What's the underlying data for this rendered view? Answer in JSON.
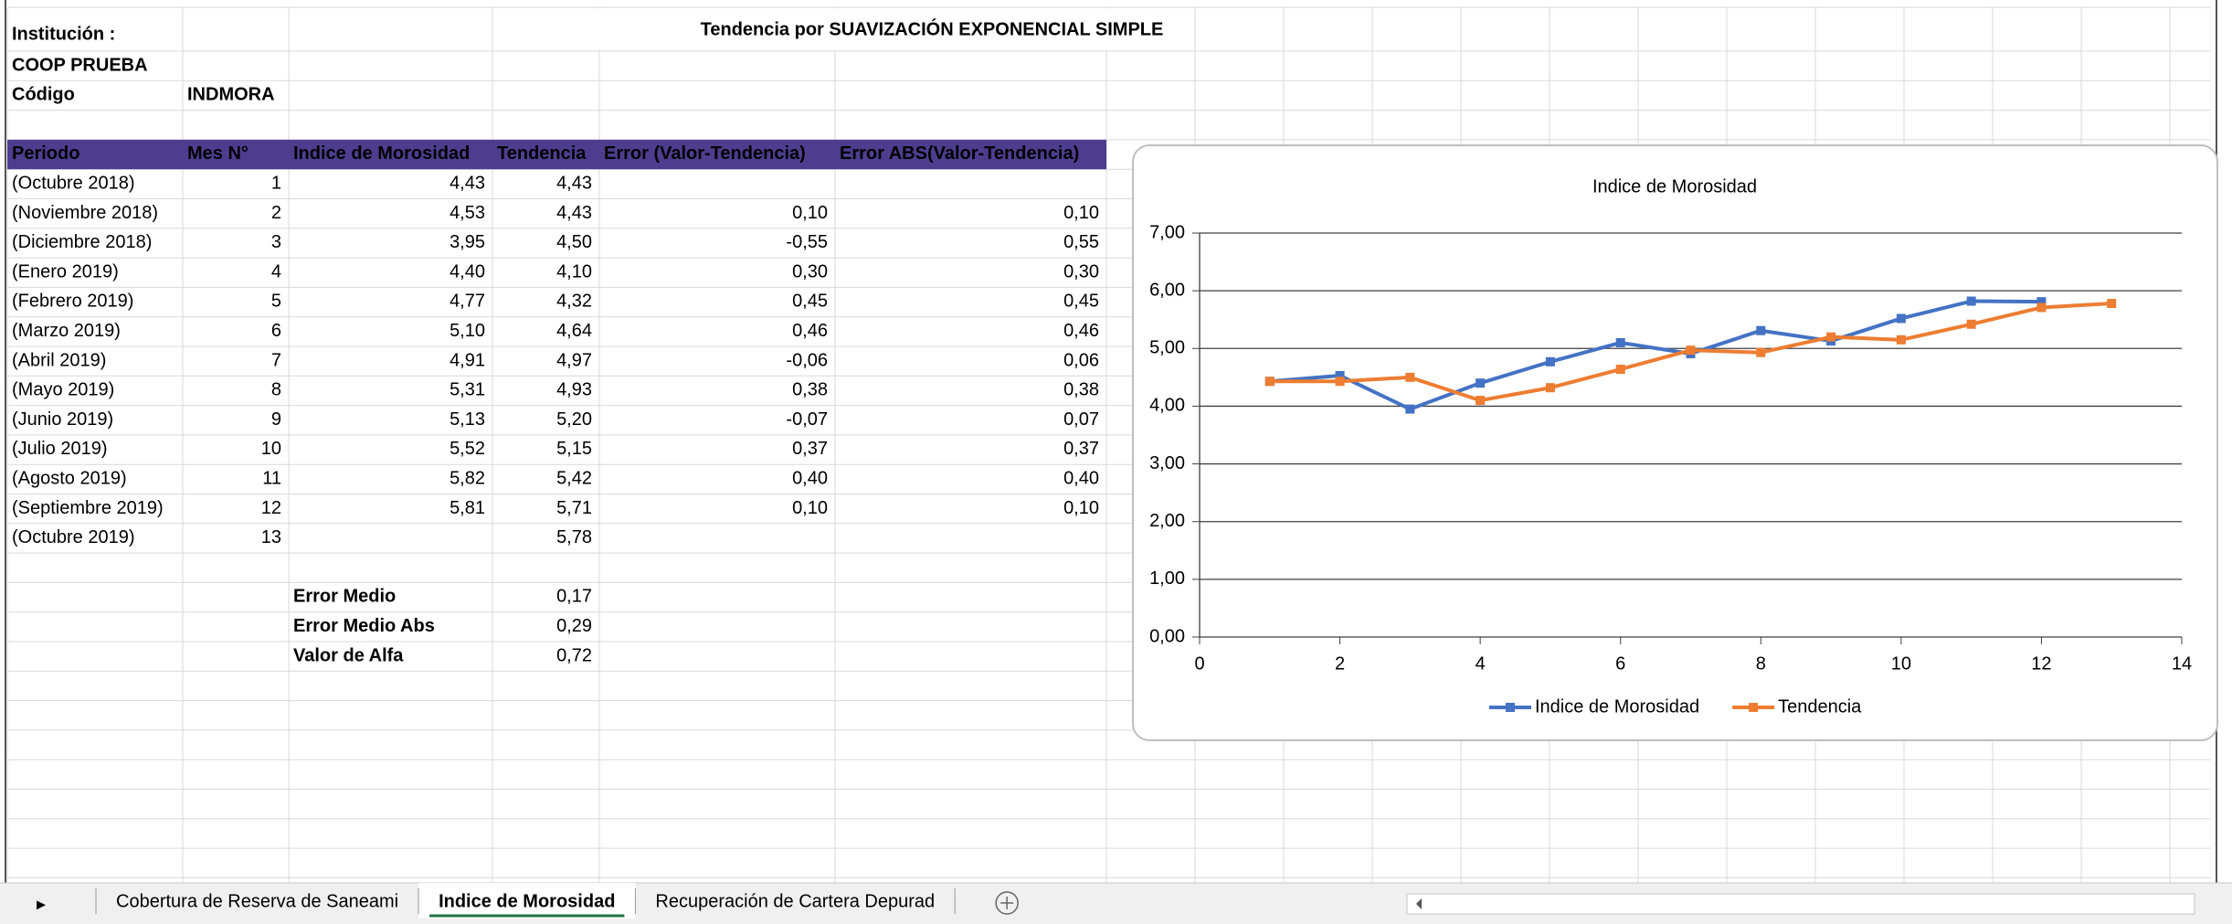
{
  "header": {
    "institution_label": "Institución :",
    "institution": "COOP PRUEBA",
    "code_label": "Código",
    "code": "INDMORA",
    "title": "Tendencia por SUAVIZACIÓN EXPONENCIAL SIMPLE"
  },
  "table": {
    "columns": [
      "Periodo",
      "Mes N°",
      "Indice de Morosidad",
      "Tendencia",
      "Error (Valor-Tendencia)",
      "Error ABS(Valor-Tendencia)"
    ],
    "rows": [
      [
        "(Octubre 2018)",
        "1",
        "4,43",
        "4,43",
        null,
        null
      ],
      [
        "(Noviembre 2018)",
        "2",
        "4,53",
        "4,43",
        "0,10",
        "0,10"
      ],
      [
        "(Diciembre 2018)",
        "3",
        "3,95",
        "4,50",
        "-0,55",
        "0,55"
      ],
      [
        "(Enero 2019)",
        "4",
        "4,40",
        "4,10",
        "0,30",
        "0,30"
      ],
      [
        "(Febrero 2019)",
        "5",
        "4,77",
        "4,32",
        "0,45",
        "0,45"
      ],
      [
        "(Marzo 2019)",
        "6",
        "5,10",
        "4,64",
        "0,46",
        "0,46"
      ],
      [
        "(Abril 2019)",
        "7",
        "4,91",
        "4,97",
        "-0,06",
        "0,06"
      ],
      [
        "(Mayo 2019)",
        "8",
        "5,31",
        "4,93",
        "0,38",
        "0,38"
      ],
      [
        "(Junio 2019)",
        "9",
        "5,13",
        "5,20",
        "-0,07",
        "0,07"
      ],
      [
        "(Julio 2019)",
        "10",
        "5,52",
        "5,15",
        "0,37",
        "0,37"
      ],
      [
        "(Agosto 2019)",
        "11",
        "5,82",
        "5,42",
        "0,40",
        "0,40"
      ],
      [
        "(Septiembre 2019)",
        "12",
        "5,81",
        "5,71",
        "0,10",
        "0,10"
      ],
      [
        "(Octubre 2019)",
        "13",
        null,
        "5,78",
        null,
        null
      ]
    ],
    "summary": [
      [
        "Error Medio",
        "0,17"
      ],
      [
        "Error Medio Abs",
        "0,29"
      ],
      [
        "Valor de Alfa",
        "0,72"
      ]
    ]
  },
  "chart_data": {
    "type": "line",
    "title": "Indice de Morosidad",
    "x": [
      1,
      2,
      3,
      4,
      5,
      6,
      7,
      8,
      9,
      10,
      11,
      12,
      13
    ],
    "series": [
      {
        "name": "Indice de Morosidad",
        "color": "#4472c4",
        "values": [
          4.43,
          4.53,
          3.95,
          4.4,
          4.77,
          5.1,
          4.91,
          5.31,
          5.13,
          5.52,
          5.82,
          5.81,
          null
        ]
      },
      {
        "name": "Tendencia",
        "color": "#ed7d31",
        "values": [
          4.43,
          4.43,
          4.5,
          4.1,
          4.32,
          4.64,
          4.97,
          4.93,
          5.2,
          5.15,
          5.42,
          5.71,
          5.78
        ]
      }
    ],
    "xlim": [
      0,
      14
    ],
    "xticks": [
      0,
      2,
      4,
      6,
      8,
      10,
      12,
      14
    ],
    "ylim": [
      0,
      7
    ],
    "yticks": [
      {
        "value": 0,
        "label": "0,00"
      },
      {
        "value": 1,
        "label": "1,00"
      },
      {
        "value": 2,
        "label": "2,00"
      },
      {
        "value": 3,
        "label": "3,00"
      },
      {
        "value": 4,
        "label": "4,00"
      },
      {
        "value": 5,
        "label": "5,00"
      },
      {
        "value": 6,
        "label": "6,00"
      },
      {
        "value": 7,
        "label": "7,00"
      }
    ],
    "grid": true,
    "legend": "bottom"
  },
  "tabs": [
    "Cobertura de Reserva de Saneami",
    "Indice de Morosidad",
    "Recuperación de Cartera Depurad"
  ],
  "active_tab": 1
}
